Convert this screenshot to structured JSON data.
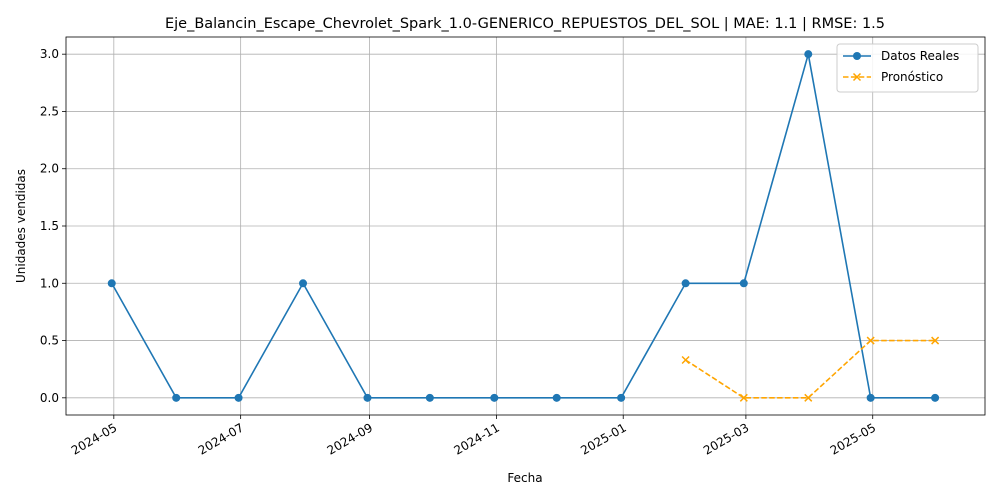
{
  "chart_data": {
    "type": "line",
    "title": "Eje_Balancin_Escape_Chevrolet_Spark_1.0-GENERICO_REPUESTOS_DEL_SOL | MAE: 1.1 | RMSE: 1.5",
    "xlabel": "Fecha",
    "ylabel": "Unidades vendidas",
    "x_tick_labels": [
      "2024-05",
      "2024-07",
      "2024-09",
      "2024-11",
      "2025-01",
      "2025-03",
      "2025-05"
    ],
    "x_ticks": [
      "2024-05-01",
      "2024-07-01",
      "2024-09-01",
      "2024-11-01",
      "2025-01-01",
      "2025-03-01",
      "2025-05-01"
    ],
    "y_tick_labels": [
      "0.0",
      "0.5",
      "1.0",
      "1.5",
      "2.0",
      "2.5",
      "3.0"
    ],
    "y_ticks": [
      0,
      0.5,
      1,
      1.5,
      2,
      2.5,
      3
    ],
    "ylim": [
      -0.15,
      3.15
    ],
    "xlim": [
      "2024-04-08",
      "2025-06-24"
    ],
    "grid": true,
    "legend_position": "top-right",
    "series": [
      {
        "name": "Datos Reales",
        "color": "#1f77b4",
        "style": "solid",
        "marker": "circle",
        "x": [
          "2024-04-30",
          "2024-05-31",
          "2024-06-30",
          "2024-07-31",
          "2024-08-31",
          "2024-09-30",
          "2024-10-31",
          "2024-11-30",
          "2024-12-31",
          "2025-01-31",
          "2025-02-28",
          "2025-03-31",
          "2025-04-30",
          "2025-05-31"
        ],
        "values": [
          1,
          0,
          0,
          1,
          0,
          0,
          0,
          0,
          0,
          1,
          1,
          3,
          0,
          0
        ]
      },
      {
        "name": "Pronóstico",
        "color": "#ffa500",
        "style": "dashed",
        "marker": "x",
        "x": [
          "2025-01-31",
          "2025-02-28",
          "2025-03-31",
          "2025-04-30",
          "2025-05-31"
        ],
        "values": [
          0.33,
          0,
          0,
          0.5,
          0.5
        ]
      }
    ]
  }
}
